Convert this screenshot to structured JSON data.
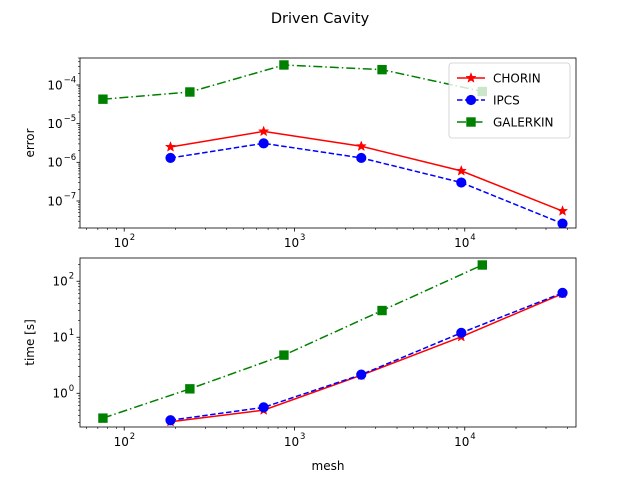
{
  "figure_title": "Driven Cavity",
  "colors": {
    "CHORIN": "#ff0000",
    "IPCS": "#0000ff",
    "GALERKIN": "#008000"
  },
  "legend_placement": "top-right of upper panel",
  "chart_data": [
    {
      "type": "line",
      "xscale": "log",
      "yscale": "log",
      "xlim": [
        55,
        45000
      ],
      "ylim": [
        2e-08,
        0.0005
      ],
      "xlabel": "",
      "ylabel": "error",
      "xticks": [
        {
          "value": 100,
          "label": "10"
        },
        {
          "value": 1000,
          "label": "10"
        },
        {
          "value": 10000,
          "label": "10"
        }
      ],
      "xtick_exps": [
        "2",
        "3",
        "4"
      ],
      "yticks": [
        {
          "value": 1e-07,
          "label": "10",
          "exp": "−7"
        },
        {
          "value": 1e-06,
          "label": "10",
          "exp": "−6"
        },
        {
          "value": 1e-05,
          "label": "10",
          "exp": "−5"
        },
        {
          "value": 0.0001,
          "label": "10",
          "exp": "−4"
        }
      ],
      "legend": [
        "CHORIN",
        "IPCS",
        "GALERKIN"
      ],
      "series": [
        {
          "name": "CHORIN",
          "marker": "star",
          "linestyle": "solid",
          "x": [
            187,
            659,
            2467,
            9539,
            37507
          ],
          "y": [
            2.5e-06,
            6.3e-06,
            2.6e-06,
            6e-07,
            5.5e-08
          ]
        },
        {
          "name": "IPCS",
          "marker": "circle",
          "linestyle": "dashed",
          "x": [
            187,
            659,
            2467,
            9539,
            37507
          ],
          "y": [
            1.3e-06,
            3.1e-06,
            1.3e-06,
            3e-07,
            2.6e-08
          ]
        },
        {
          "name": "GALERKIN",
          "marker": "square",
          "linestyle": "dashdot",
          "x": [
            75,
            243,
            867,
            3267,
            12675
          ],
          "y": [
            4.3e-05,
            6.6e-05,
            0.00033,
            0.00025,
            6.8e-05
          ]
        }
      ]
    },
    {
      "type": "line",
      "xscale": "log",
      "yscale": "log",
      "xlim": [
        55,
        45000
      ],
      "ylim": [
        0.25,
        260
      ],
      "xlabel": "mesh",
      "ylabel": "time [s]",
      "xticks": [
        {
          "value": 100,
          "label": "10"
        },
        {
          "value": 1000,
          "label": "10"
        },
        {
          "value": 10000,
          "label": "10"
        }
      ],
      "xtick_exps": [
        "2",
        "3",
        "4"
      ],
      "yticks": [
        {
          "value": 1,
          "label": "10",
          "exp": "0"
        },
        {
          "value": 10,
          "label": "10",
          "exp": "1"
        },
        {
          "value": 100,
          "label": "10",
          "exp": "2"
        }
      ],
      "series": [
        {
          "name": "CHORIN",
          "marker": "star",
          "linestyle": "solid",
          "x": [
            187,
            659,
            2467,
            9539,
            37507
          ],
          "y": [
            0.31,
            0.5,
            2.1,
            10.2,
            60
          ]
        },
        {
          "name": "IPCS",
          "marker": "circle",
          "linestyle": "dashed",
          "x": [
            187,
            659,
            2467,
            9539,
            37507
          ],
          "y": [
            0.33,
            0.56,
            2.15,
            12,
            62
          ]
        },
        {
          "name": "GALERKIN",
          "marker": "square",
          "linestyle": "dashdot",
          "x": [
            75,
            243,
            867,
            3267,
            12675
          ],
          "y": [
            0.36,
            1.2,
            4.8,
            30,
            195
          ]
        }
      ]
    }
  ]
}
